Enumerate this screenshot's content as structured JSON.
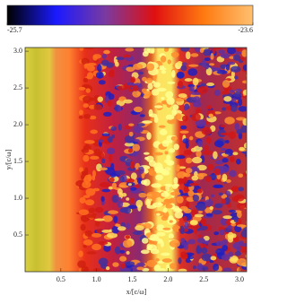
{
  "chart_data": {
    "type": "heatmap",
    "colorbar": {
      "lim": [
        -25.7,
        -23.6
      ],
      "ticks": [
        -25.7,
        -23.6
      ],
      "colormap": [
        "#000000",
        "#1a1aff",
        "#7a3aa0",
        "#e01010",
        "#ff7a10",
        "#ffc070"
      ]
    },
    "xlabel": "x/[c/ω]",
    "ylabel": "y/[c/ω]",
    "xlim": [
      0,
      3.1
    ],
    "ylim": [
      0,
      3.05
    ],
    "xticks": [
      0.5,
      {
        "value": 1,
        "label": "1.0"
      },
      1.5,
      {
        "value": 2,
        "label": "2.0"
      },
      2.5,
      {
        "value": 3,
        "label": "3.0"
      }
    ],
    "yticks": [
      0.5,
      {
        "value": 1,
        "label": "1.0"
      },
      1.5,
      {
        "value": 2,
        "label": "2.0"
      },
      2.5,
      {
        "value": 3,
        "label": "3.0"
      }
    ]
  }
}
